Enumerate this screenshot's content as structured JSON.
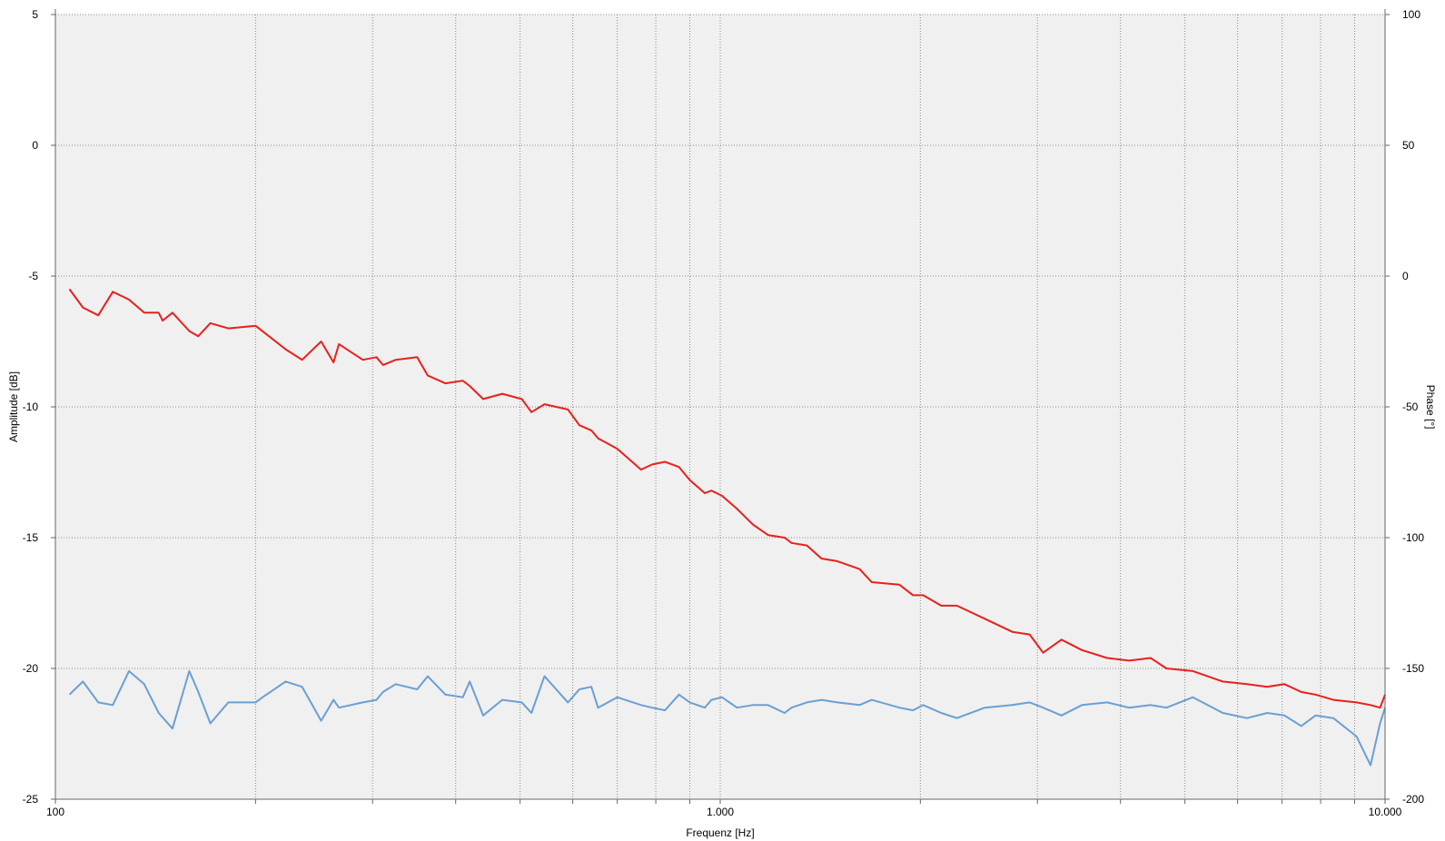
{
  "chart_data": {
    "type": "line",
    "xlabel": "Frequenz [Hz]",
    "ylabel": "Amplitude [dB]",
    "y2label": "Phase [°]",
    "xscale": "log",
    "xlim": [
      100,
      10000
    ],
    "ylim": [
      -25,
      5
    ],
    "y2lim": [
      -200,
      100
    ],
    "grid": true,
    "x_ticks": [
      {
        "value": 100,
        "label": "100"
      },
      {
        "value": 1000,
        "label": "1.000"
      },
      {
        "value": 10000,
        "label": "10.000"
      }
    ],
    "y_ticks": [
      {
        "value": 5,
        "label": "5"
      },
      {
        "value": 0,
        "label": "0"
      },
      {
        "value": -5,
        "label": "-5"
      },
      {
        "value": -10,
        "label": "-10"
      },
      {
        "value": -15,
        "label": "-15"
      },
      {
        "value": -20,
        "label": "-20"
      },
      {
        "value": -25,
        "label": "-25"
      }
    ],
    "y2_ticks": [
      {
        "value": 100,
        "label": "100"
      },
      {
        "value": 50,
        "label": "50"
      },
      {
        "value": 0,
        "label": "0"
      },
      {
        "value": -50,
        "label": "-50"
      },
      {
        "value": -100,
        "label": "-100"
      },
      {
        "value": -150,
        "label": "-150"
      },
      {
        "value": -200,
        "label": "-200"
      }
    ],
    "series": [
      {
        "axis": "left",
        "color": "#e8201c",
        "x": [
          105,
          110,
          116,
          122,
          129,
          136,
          143,
          145,
          150,
          159,
          164,
          171,
          182,
          200,
          222,
          235,
          251,
          262,
          267,
          290,
          304,
          311,
          325,
          350,
          363,
          386,
          410,
          420,
          440,
          470,
          503,
          520,
          544,
          590,
          614,
          640,
          655,
          700,
          760,
          790,
          826,
          867,
          900,
          948,
          970,
          1006,
          1060,
          1120,
          1180,
          1250,
          1280,
          1350,
          1420,
          1500,
          1620,
          1690,
          1860,
          1950,
          2020,
          2150,
          2270,
          2500,
          2750,
          2920,
          3060,
          3260,
          3500,
          3820,
          4120,
          4440,
          4690,
          5140,
          5700,
          6200,
          6650,
          7060,
          7480,
          7860,
          8360,
          9060,
          9510,
          9830,
          10000
        ],
        "values": [
          -5.5,
          -6.2,
          -6.5,
          -5.6,
          -5.9,
          -6.4,
          -6.4,
          -6.7,
          -6.4,
          -7.1,
          -7.3,
          -6.8,
          -7.0,
          -6.9,
          -7.8,
          -8.2,
          -7.5,
          -8.3,
          -7.6,
          -8.2,
          -8.1,
          -8.4,
          -8.2,
          -8.1,
          -8.8,
          -9.1,
          -9.0,
          -9.2,
          -9.7,
          -9.5,
          -9.7,
          -10.2,
          -9.9,
          -10.1,
          -10.7,
          -10.9,
          -11.2,
          -11.6,
          -12.4,
          -12.2,
          -12.1,
          -12.3,
          -12.8,
          -13.3,
          -13.2,
          -13.4,
          -13.9,
          -14.5,
          -14.9,
          -15.0,
          -15.2,
          -15.3,
          -15.8,
          -15.9,
          -16.2,
          -16.7,
          -16.8,
          -17.2,
          -17.2,
          -17.6,
          -17.6,
          -18.1,
          -18.6,
          -18.7,
          -19.4,
          -18.9,
          -19.3,
          -19.6,
          -19.7,
          -19.6,
          -20.0,
          -20.1,
          -20.5,
          -20.6,
          -20.7,
          -20.6,
          -20.9,
          -21.0,
          -21.2,
          -21.3,
          -21.4,
          -21.5,
          -21.0
        ]
      },
      {
        "axis": "right",
        "color": "#6a9fd4",
        "x": [
          105,
          110,
          116,
          122,
          129,
          136,
          143,
          150,
          159,
          164,
          171,
          182,
          200,
          205,
          222,
          235,
          251,
          262,
          267,
          290,
          304,
          311,
          325,
          350,
          363,
          386,
          410,
          420,
          440,
          470,
          503,
          520,
          544,
          590,
          614,
          640,
          655,
          700,
          760,
          790,
          826,
          867,
          900,
          948,
          970,
          1006,
          1060,
          1120,
          1180,
          1250,
          1280,
          1350,
          1420,
          1500,
          1620,
          1690,
          1860,
          1950,
          2020,
          2150,
          2270,
          2500,
          2750,
          2920,
          3060,
          3260,
          3500,
          3820,
          4120,
          4440,
          4690,
          5140,
          5700,
          6200,
          6650,
          7060,
          7480,
          7860,
          8360,
          9060,
          9510,
          9830,
          10000
        ],
        "values": [
          -160,
          -155,
          -163,
          -164,
          -151,
          -156,
          -167,
          -173,
          -151,
          -159,
          -171,
          -163,
          -163,
          -161,
          -155,
          -157,
          -170,
          -162,
          -165,
          -163,
          -162,
          -159,
          -156,
          -158,
          -153,
          -160,
          -161,
          -155,
          -168,
          -162,
          -163,
          -167,
          -153,
          -163,
          -158,
          -157,
          -165,
          -161,
          -164,
          -165,
          -166,
          -160,
          -163,
          -165,
          -162,
          -161,
          -165,
          -164,
          -164,
          -167,
          -165,
          -163,
          -162,
          -163,
          -164,
          -162,
          -165,
          -166,
          -164,
          -167,
          -169,
          -165,
          -164,
          -163,
          -165,
          -168,
          -164,
          -163,
          -165,
          -164,
          -165,
          -161,
          -167,
          -169,
          -167,
          -168,
          -172,
          -168,
          -169,
          -176,
          -187,
          -171,
          -165
        ]
      }
    ]
  }
}
